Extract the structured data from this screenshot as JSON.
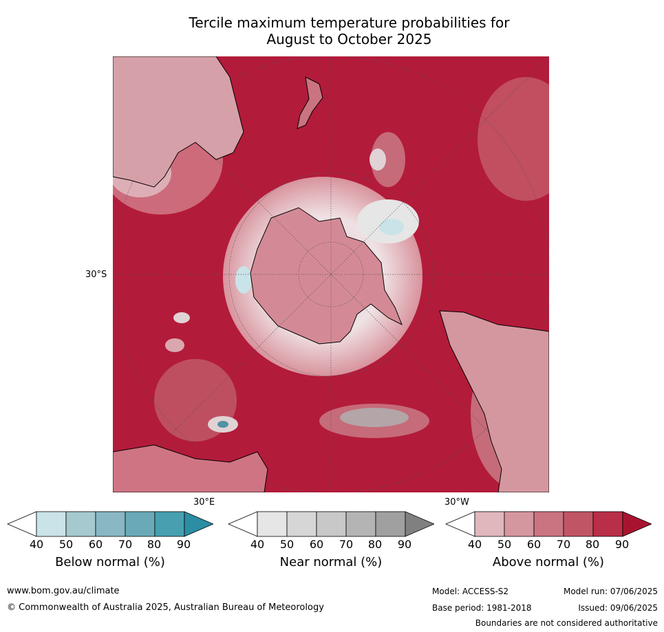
{
  "title": {
    "line1": "Tercile maximum temperature probabilities for",
    "line2": "August to October 2025"
  },
  "map": {
    "projection_labels": {
      "lat_30s": "30°S",
      "lon_30e": "30°E",
      "lon_30w": "30°W"
    },
    "colors": {
      "above_dominant": "#b31b3a",
      "antarctica": "#d48a96",
      "land_outline": "#000000",
      "graticule": "#555555"
    }
  },
  "colorbars": [
    {
      "label": "Below normal (%)",
      "ticks": [
        "40",
        "50",
        "60",
        "70",
        "80",
        "90"
      ],
      "colors": [
        "#ffffff",
        "#cae3e8",
        "#a6c8cf",
        "#89b7c3",
        "#6aa9b8",
        "#479fb0",
        "#2b8ea3"
      ]
    },
    {
      "label": "Near normal (%)",
      "ticks": [
        "40",
        "50",
        "60",
        "70",
        "80",
        "90"
      ],
      "colors": [
        "#ffffff",
        "#e6e6e6",
        "#d6d6d6",
        "#c8c8c8",
        "#b4b4b4",
        "#a0a0a0",
        "#808080"
      ]
    },
    {
      "label": "Above normal (%)",
      "ticks": [
        "40",
        "50",
        "60",
        "70",
        "80",
        "90"
      ],
      "colors": [
        "#ffffff",
        "#e0b7bc",
        "#d5979f",
        "#c97480",
        "#c05566",
        "#b92e48",
        "#a8142f"
      ]
    }
  ],
  "footer": {
    "website": "www.bom.gov.au/climate",
    "copyright": "© Commonwealth of Australia 2025, Australian Bureau of Meteorology",
    "model": "Model: ACCESS-S2",
    "model_run": "Model run: 07/06/2025",
    "base_period": "Base period: 1981-2018",
    "issued": "Issued: 09/06/2025",
    "disclaimer": "Boundaries are not considered authoritative"
  }
}
